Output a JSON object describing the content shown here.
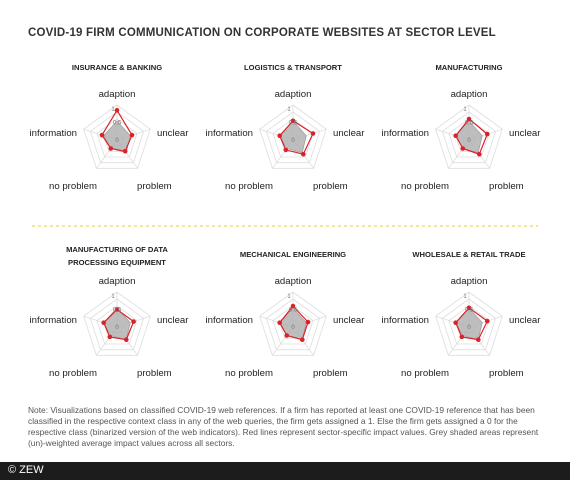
{
  "title": "COVID-19 FIRM COMMUNICATION ON CORPORATE WEBSITES AT SECTOR LEVEL",
  "note": "Note: Visualizations based on classified COVID-19 web references. If a firm has reported at least one COVID-19 reference that has been classified in the respective context class in any of the web queries, the firm gets assigned a 1. Else the firm gets assigned a 0 for the respective class (binarized version of the web indicators). Red lines represent sector-specific impact values. Grey shaded areas represent (un)-weighted average impact values across all sectors.",
  "copyright": "© ZEW",
  "colors": {
    "sector_line": "#d9232a",
    "average_fill": "#b3b3b3",
    "grid": "#dddddd",
    "divider": "#e3cf3c",
    "footer": "#1c1c1c"
  },
  "chart_data": [
    {
      "type": "radar",
      "title": "INSURANCE & BANKING",
      "axes": [
        "adaption",
        "unclear",
        "problem",
        "no problem",
        "information"
      ],
      "ticks": [
        "0",
        "0.5",
        "1"
      ],
      "range": [
        0,
        1
      ],
      "series": [
        {
          "values": [
            0.85,
            0.45,
            0.4,
            0.3,
            0.45
          ]
        },
        {
          "values": [
            0.55,
            0.4,
            0.45,
            0.3,
            0.4
          ]
        }
      ]
    },
    {
      "type": "radar",
      "title": "LOGISTICS & TRANSPORT",
      "axes": [
        "adaption",
        "unclear",
        "problem",
        "no problem",
        "information"
      ],
      "ticks": [
        "0",
        "0.5",
        "1"
      ],
      "range": [
        0,
        1
      ],
      "series": [
        {
          "values": [
            0.55,
            0.6,
            0.5,
            0.35,
            0.4
          ]
        },
        {
          "values": [
            0.55,
            0.4,
            0.45,
            0.3,
            0.4
          ]
        }
      ]
    },
    {
      "type": "radar",
      "title": "MANUFACTURING",
      "axes": [
        "adaption",
        "unclear",
        "problem",
        "no problem",
        "information"
      ],
      "ticks": [
        "0",
        "0.5",
        "1"
      ],
      "range": [
        0,
        1
      ],
      "series": [
        {
          "values": [
            0.6,
            0.55,
            0.5,
            0.3,
            0.4
          ]
        },
        {
          "values": [
            0.55,
            0.4,
            0.45,
            0.3,
            0.4
          ]
        }
      ]
    },
    {
      "type": "radar",
      "title": "MANUFACTURING OF DATA PROCESSING EQUIPMENT",
      "axes": [
        "adaption",
        "unclear",
        "problem",
        "no problem",
        "information"
      ],
      "ticks": [
        "0",
        "0.5",
        "1"
      ],
      "range": [
        0,
        1
      ],
      "series": [
        {
          "values": [
            0.5,
            0.5,
            0.45,
            0.35,
            0.4
          ]
        },
        {
          "values": [
            0.55,
            0.4,
            0.45,
            0.3,
            0.4
          ]
        }
      ]
    },
    {
      "type": "radar",
      "title": "MECHANICAL ENGINEERING",
      "axes": [
        "adaption",
        "unclear",
        "problem",
        "no problem",
        "information"
      ],
      "ticks": [
        "0",
        "0.5",
        "1"
      ],
      "range": [
        0,
        1
      ],
      "series": [
        {
          "values": [
            0.6,
            0.45,
            0.45,
            0.3,
            0.4
          ]
        },
        {
          "values": [
            0.55,
            0.4,
            0.45,
            0.3,
            0.4
          ]
        }
      ]
    },
    {
      "type": "radar",
      "title": "WHOLESALE & RETAIL TRADE",
      "axes": [
        "adaption",
        "unclear",
        "problem",
        "no problem",
        "information"
      ],
      "ticks": [
        "0",
        "0.5",
        "1"
      ],
      "range": [
        0,
        1
      ],
      "series": [
        {
          "values": [
            0.55,
            0.55,
            0.45,
            0.35,
            0.4
          ]
        },
        {
          "values": [
            0.55,
            0.4,
            0.45,
            0.3,
            0.4
          ]
        }
      ]
    }
  ]
}
